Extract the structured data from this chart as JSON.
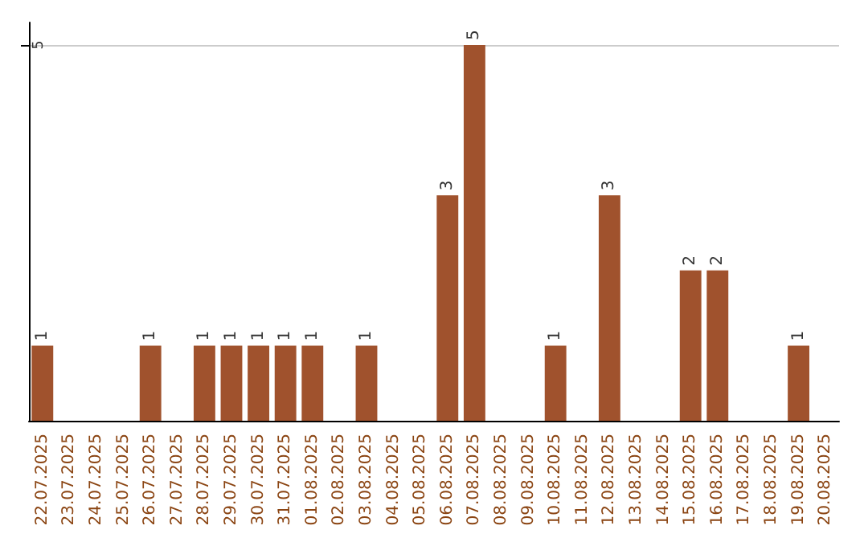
{
  "chart_data": {
    "type": "bar",
    "categories": [
      "22.07.2025",
      "23.07.2025",
      "24.07.2025",
      "25.07.2025",
      "26.07.2025",
      "27.07.2025",
      "28.07.2025",
      "29.07.2025",
      "30.07.2025",
      "31.07.2025",
      "01.08.2025",
      "02.08.2025",
      "03.08.2025",
      "04.08.2025",
      "05.08.2025",
      "06.08.2025",
      "07.08.2025",
      "08.08.2025",
      "09.08.2025",
      "10.08.2025",
      "11.08.2025",
      "12.08.2025",
      "13.08.2025",
      "14.08.2025",
      "15.08.2025",
      "16.08.2025",
      "17.08.2025",
      "18.08.2025",
      "19.08.2025",
      "20.08.2025"
    ],
    "values": [
      1,
      0,
      0,
      0,
      1,
      0,
      1,
      1,
      1,
      1,
      1,
      0,
      1,
      0,
      0,
      3,
      5,
      0,
      0,
      1,
      0,
      3,
      0,
      0,
      2,
      2,
      0,
      0,
      1,
      0
    ],
    "value_labels": [
      "1",
      null,
      null,
      null,
      "1",
      null,
      "1",
      "1",
      "1",
      "1",
      "1",
      null,
      "1",
      null,
      null,
      "3",
      "5",
      null,
      null,
      "1",
      null,
      "3",
      null,
      null,
      "2",
      "2",
      null,
      null,
      "1",
      null
    ],
    "color": "#a0522d",
    "ylim": [
      0,
      5.3
    ],
    "yticks": [
      5
    ],
    "grid": "y"
  }
}
